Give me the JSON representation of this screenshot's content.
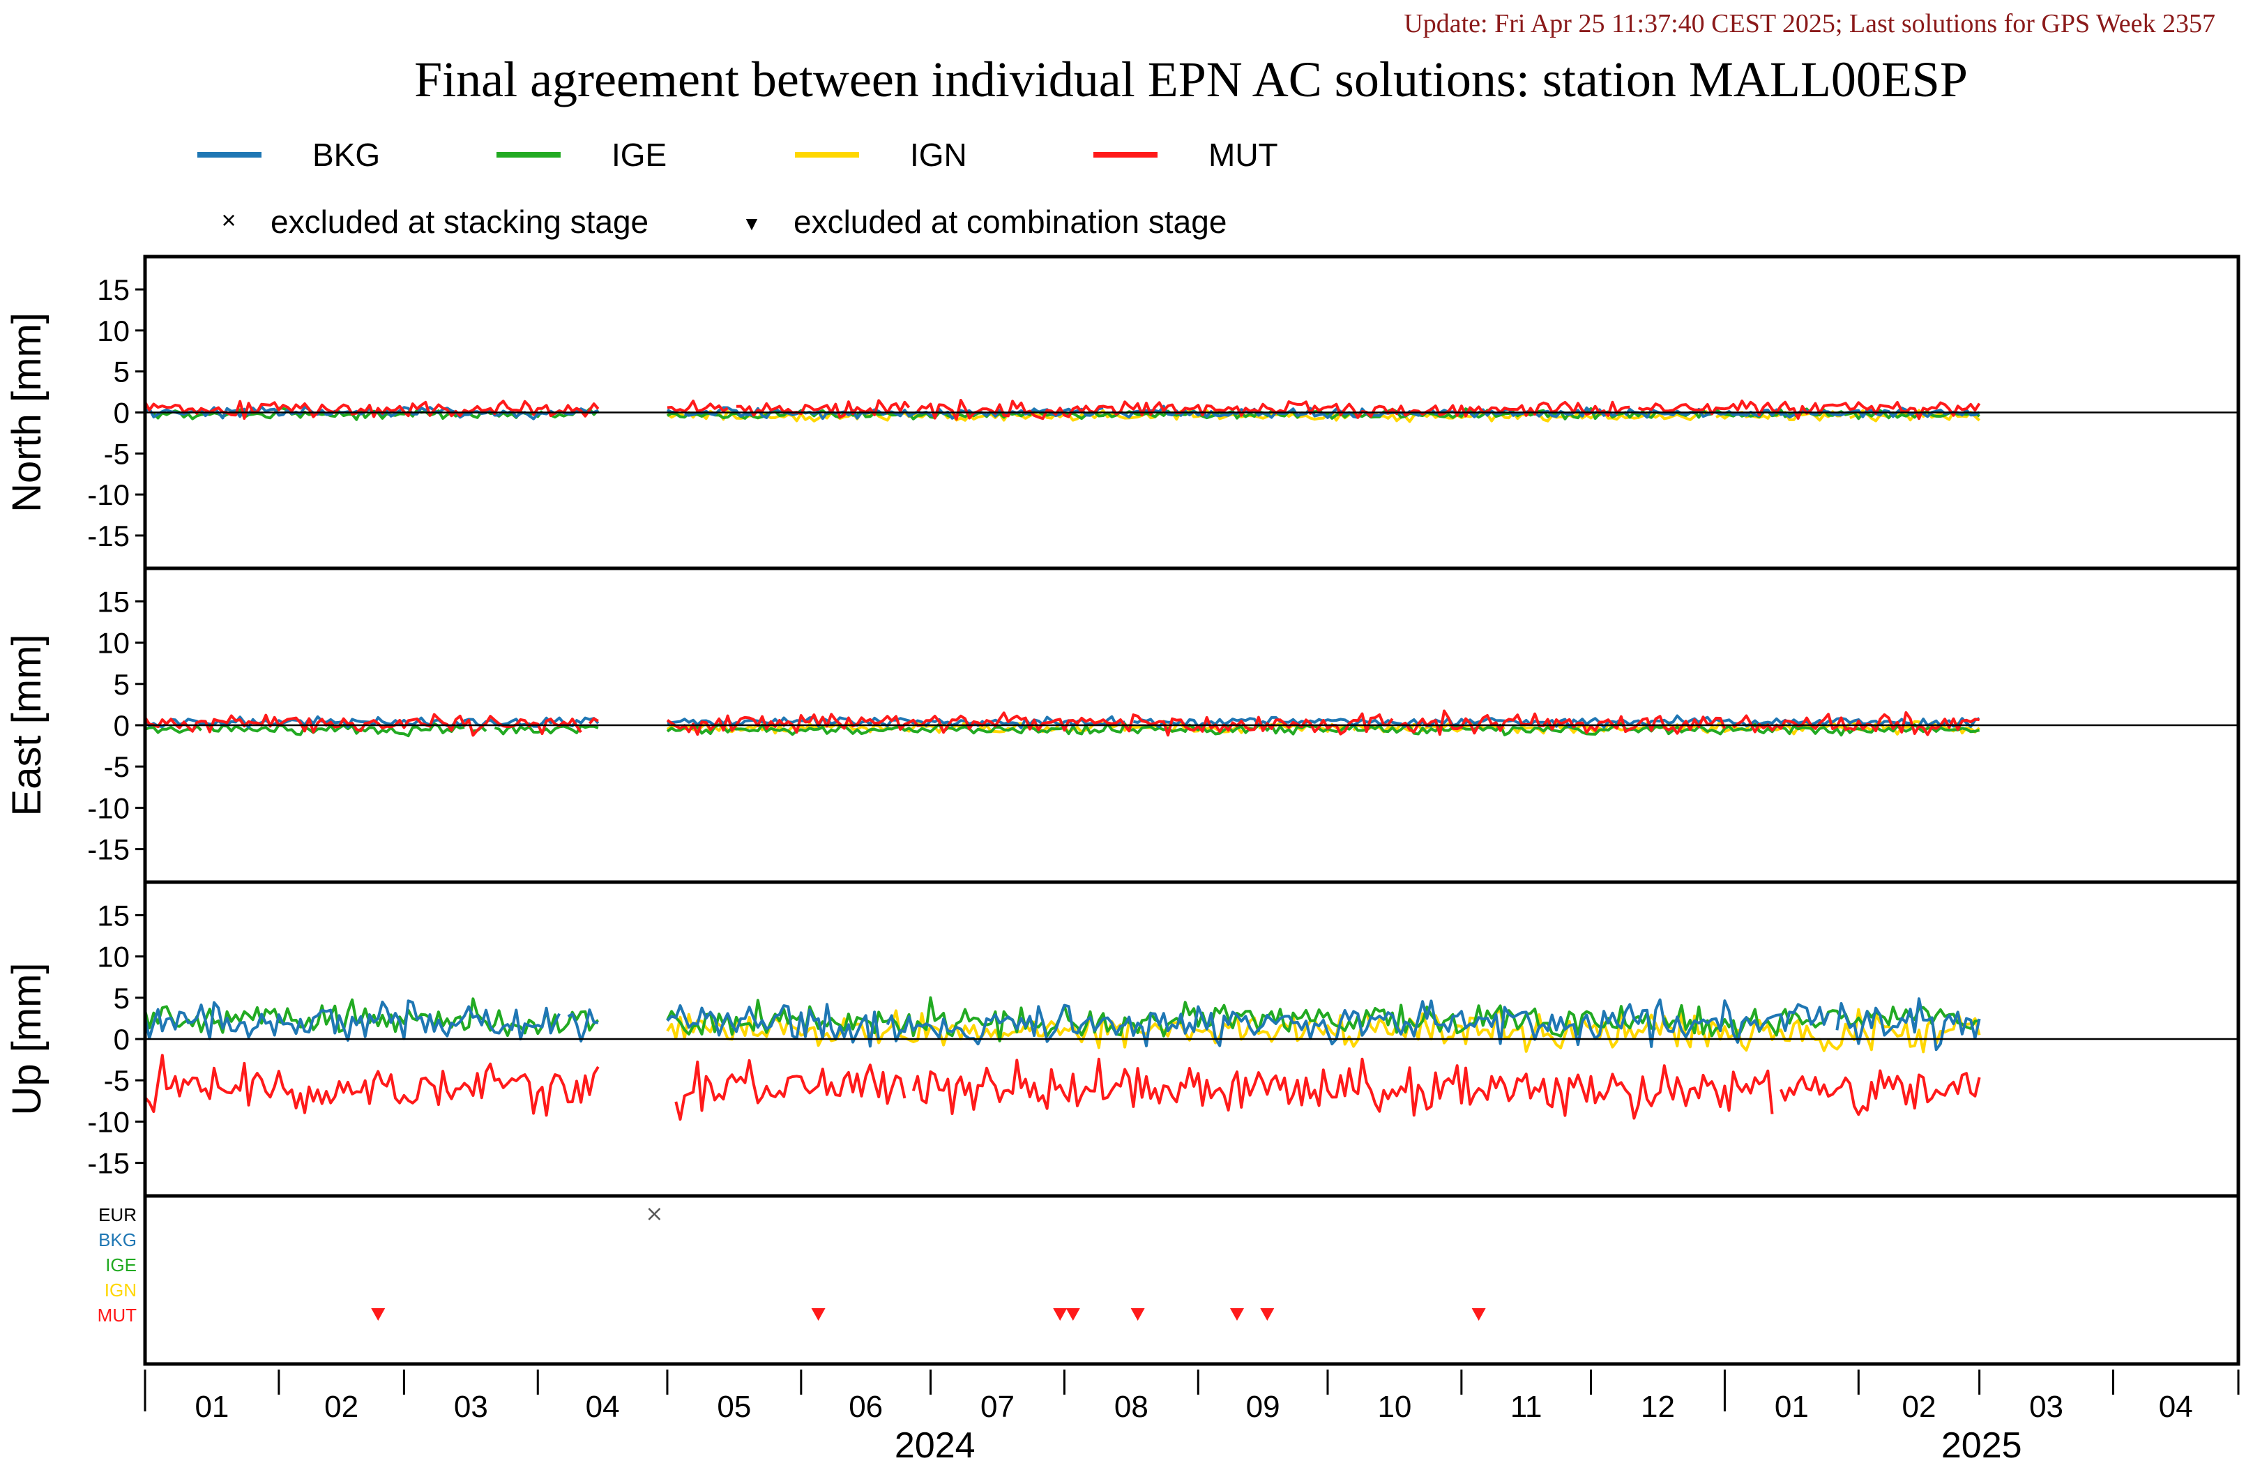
{
  "update_text": "Update: Fri Apr 25 11:37:40 CEST 2025; Last solutions for GPS Week 2357",
  "title": "Final agreement between individual EPN AC solutions: station MALL00ESP",
  "legend": {
    "items": [
      {
        "name": "BKG",
        "color": "#1f77b4"
      },
      {
        "name": "IGE",
        "color": "#22aa22"
      },
      {
        "name": "IGN",
        "color": "#ffd700"
      },
      {
        "name": "MUT",
        "color": "#ff1a1a"
      }
    ],
    "excluded_stacking": "excluded at stacking stage",
    "excluded_combination": "excluded at combination stage",
    "stacking_symbol": "×",
    "combination_symbol": "▼"
  },
  "chart_data": {
    "type": "line",
    "x_range": [
      "2024-01-01",
      "2025-04-30"
    ],
    "month_labels": [
      "01",
      "02",
      "03",
      "04",
      "05",
      "06",
      "07",
      "08",
      "09",
      "10",
      "11",
      "12",
      "01",
      "02",
      "03",
      "04"
    ],
    "year_labels": [
      "2024",
      "2025"
    ],
    "ylim": [
      -19,
      19
    ],
    "yticks": [
      -15,
      -10,
      -5,
      0,
      5,
      10,
      15
    ],
    "panels": [
      {
        "ylabel": "North [mm]",
        "series": {
          "BKG": {
            "mean": 0.0,
            "noise": 0.5
          },
          "IGE": {
            "mean": -0.2,
            "noise": 0.5
          },
          "IGN": {
            "mean": -0.4,
            "noise": 0.5
          },
          "MUT": {
            "mean": 0.4,
            "noise": 0.8
          }
        }
      },
      {
        "ylabel": "East [mm]",
        "series": {
          "BKG": {
            "mean": 0.4,
            "noise": 0.5
          },
          "IGE": {
            "mean": -0.5,
            "noise": 0.5
          },
          "IGN": {
            "mean": -0.3,
            "noise": 0.6
          },
          "MUT": {
            "mean": 0.2,
            "noise": 1.0
          }
        }
      },
      {
        "ylabel": "Up [mm]",
        "series": {
          "BKG": {
            "mean": 2.0,
            "noise": 2.0
          },
          "IGE": {
            "mean": 2.3,
            "noise": 1.8
          },
          "IGN": {
            "mean": 1.0,
            "noise": 1.8
          },
          "MUT": {
            "mean": -6.0,
            "noise": 2.5
          }
        }
      }
    ],
    "series_dates": {
      "BKG": [
        "2024-01-01",
        "2025-03-01"
      ],
      "IGE": [
        "2024-01-01",
        "2025-03-01"
      ],
      "IGN": [
        "2024-05-01",
        "2025-03-01"
      ],
      "MUT": [
        "2024-01-01",
        "2025-03-01"
      ]
    },
    "gaps": [
      [
        "2024-04-16",
        "2024-04-30"
      ]
    ],
    "exclusion_rows": [
      "EUR",
      "BKG",
      "IGE",
      "IGN",
      "MUT"
    ],
    "exclusions": [
      {
        "ac": "EUR",
        "type": "stacking",
        "date": "2024-04-28"
      },
      {
        "ac": "MUT",
        "type": "combination",
        "date": "2024-02-24"
      },
      {
        "ac": "MUT",
        "type": "combination",
        "date": "2024-06-05"
      },
      {
        "ac": "MUT",
        "type": "combination",
        "date": "2024-07-31"
      },
      {
        "ac": "MUT",
        "type": "combination",
        "date": "2024-08-03"
      },
      {
        "ac": "MUT",
        "type": "combination",
        "date": "2024-08-18"
      },
      {
        "ac": "MUT",
        "type": "combination",
        "date": "2024-09-10"
      },
      {
        "ac": "MUT",
        "type": "combination",
        "date": "2024-09-17"
      },
      {
        "ac": "MUT",
        "type": "combination",
        "date": "2024-11-05"
      }
    ]
  }
}
